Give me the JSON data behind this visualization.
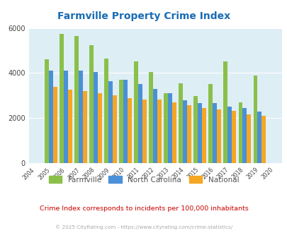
{
  "title": "Farmville Property Crime Index",
  "years": [
    2004,
    2005,
    2006,
    2007,
    2008,
    2009,
    2010,
    2011,
    2012,
    2013,
    2014,
    2015,
    2016,
    2017,
    2018,
    2019,
    2020
  ],
  "farmville": [
    null,
    4600,
    5750,
    5650,
    5250,
    4650,
    3700,
    4500,
    4050,
    3100,
    3550,
    2980,
    3500,
    4500,
    2700,
    3900,
    null
  ],
  "north_carolina": [
    null,
    4100,
    4100,
    4100,
    4050,
    3650,
    3700,
    3500,
    3300,
    3100,
    2800,
    2650,
    2650,
    2500,
    2450,
    2300,
    null
  ],
  "national": [
    null,
    3400,
    3250,
    3200,
    3100,
    3000,
    2880,
    2830,
    2830,
    2700,
    2570,
    2450,
    2380,
    2320,
    2160,
    2100,
    null
  ],
  "farmville_color": "#8ac04a",
  "nc_color": "#4a90d9",
  "national_color": "#f5a623",
  "bg_color": "#deeef5",
  "title_color": "#1a6cb5",
  "ylim": [
    0,
    6000
  ],
  "yticks": [
    0,
    2000,
    4000,
    6000
  ],
  "subtitle": "Crime Index corresponds to incidents per 100,000 inhabitants",
  "footer": "© 2025 CityRating.com - https://www.cityrating.com/crime-statistics/",
  "subtitle_color": "#cc0000",
  "footer_color": "#aaaaaa",
  "legend_label_color": "#555555"
}
